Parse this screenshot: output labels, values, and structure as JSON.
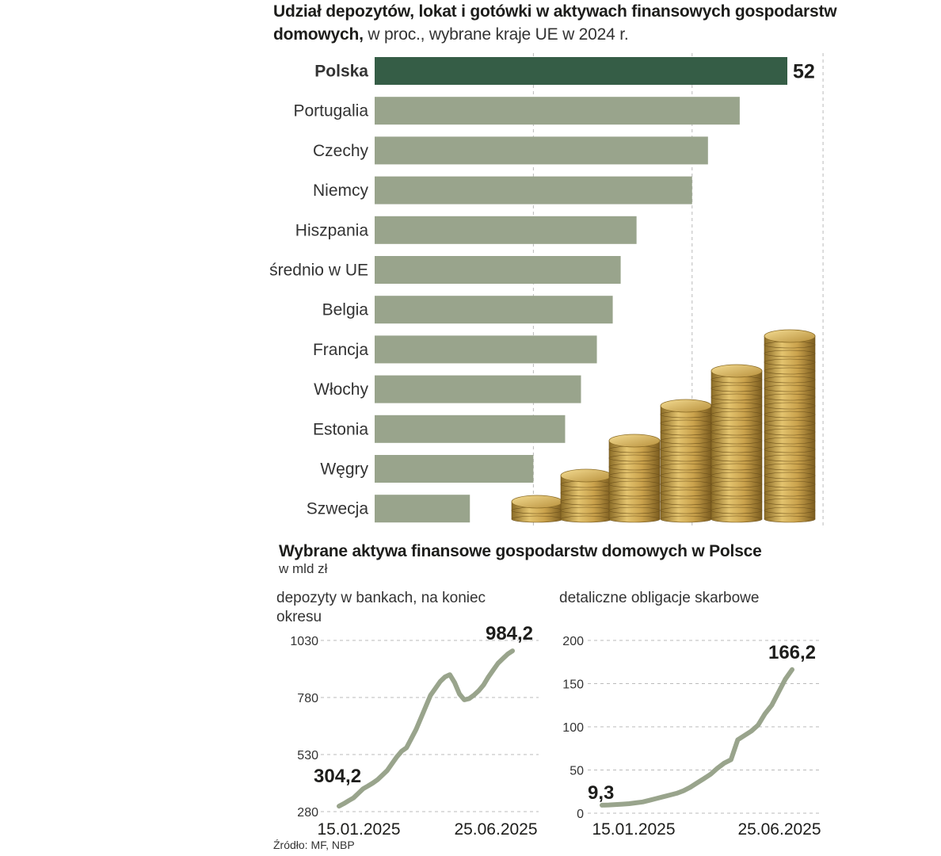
{
  "section1": {
    "title_bold": "Udział depozytów, lokat i gotówki w aktywach finansowych gospodarstw domowych,",
    "title_rest": " w proc., wybrane kraje UE w 2024 r."
  },
  "section2": {
    "title": "Wybrane aktywa finansowe gospodarstw domowych w Polsce",
    "unit": "w mld zł",
    "left_label": "depozyty w bankach, na koniec okresu",
    "right_label": "detaliczne obligacje skarbowe"
  },
  "source": "Źródło: MF, NBP",
  "colors": {
    "highlight_bar": "#355d46",
    "bar": "#99a48c",
    "line": "#99a48c",
    "grid": "#bbbbbb"
  },
  "icons": {
    "coins": "coin-stacks-photo"
  },
  "chart_data": [
    {
      "type": "bar",
      "orientation": "horizontal",
      "title": "Udział depozytów, lokat i gotówki w aktywach finansowych gospodarstw domowych, w proc., wybrane kraje UE w 2024 r.",
      "categories": [
        "Polska",
        "Portugalia",
        "Czechy",
        "Niemcy",
        "Hiszpania",
        "średnio w UE",
        "Belgia",
        "Francja",
        "Włochy",
        "Estonia",
        "Węgry",
        "Szwecja"
      ],
      "values": [
        52,
        46,
        42,
        40,
        33,
        31,
        30,
        28,
        26,
        24,
        20,
        12
      ],
      "highlight": "Polska",
      "value_labels": [
        "52"
      ],
      "xlim": [
        0,
        55
      ],
      "grid": true
    },
    {
      "type": "line",
      "title": "depozyty w bankach, na koniec okresu",
      "x_tick_labels": [
        "15.01.2025",
        "25.06.2025"
      ],
      "y_ticks": [
        280,
        530,
        780,
        1030
      ],
      "ylim": [
        280,
        1030
      ],
      "start_label": "304,2",
      "end_label": "984,2",
      "series": [
        {
          "name": "depozyty",
          "values": [
            304,
            315,
            328,
            340,
            360,
            380,
            392,
            405,
            420,
            440,
            460,
            490,
            520,
            545,
            560,
            600,
            640,
            690,
            740,
            790,
            820,
            850,
            870,
            880,
            845,
            795,
            770,
            775,
            790,
            810,
            835,
            870,
            900,
            930,
            950,
            970,
            984.2
          ]
        }
      ]
    },
    {
      "type": "line",
      "title": "detaliczne obligacje skarbowe",
      "x_tick_labels": [
        "15.01.2025",
        "25.06.2025"
      ],
      "y_ticks": [
        0,
        50,
        100,
        150,
        200
      ],
      "ylim": [
        0,
        200
      ],
      "start_label": "9,3",
      "end_label": "166,2",
      "series": [
        {
          "name": "obligacje",
          "values": [
            9.3,
            9.5,
            10,
            10.5,
            11,
            12,
            13,
            15,
            17,
            19,
            21,
            23,
            26,
            30,
            35,
            40,
            45,
            52,
            58,
            62,
            85,
            90,
            95,
            102,
            115,
            125,
            140,
            155,
            166.2
          ]
        }
      ]
    }
  ]
}
